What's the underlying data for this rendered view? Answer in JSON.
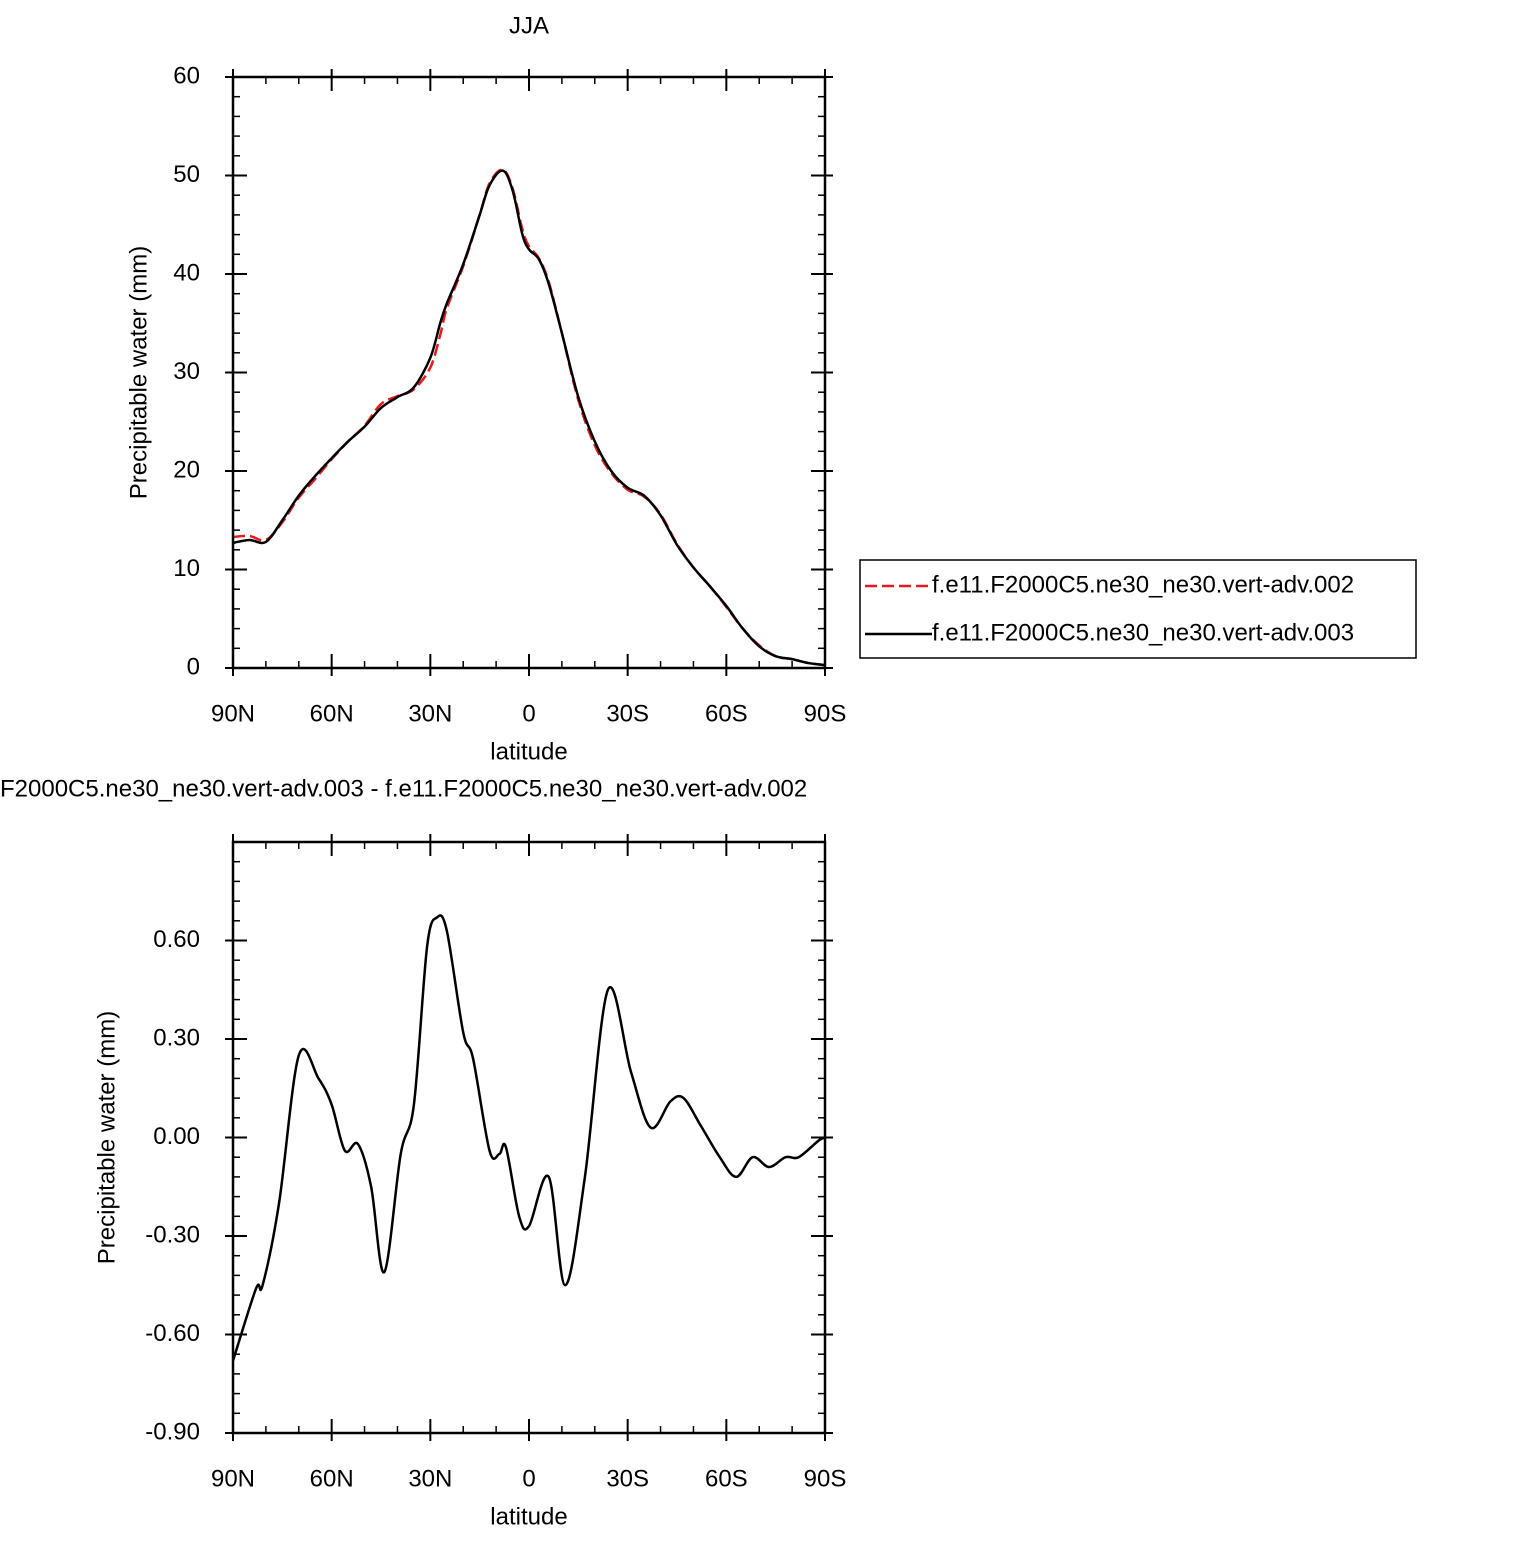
{
  "chart_data": [
    {
      "type": "line",
      "title": "JJA",
      "xlabel": "latitude",
      "ylabel": "Precipitable water (mm)",
      "x": [
        90,
        85,
        80,
        75,
        70,
        65,
        60,
        55,
        50,
        45,
        40,
        35,
        30,
        27,
        25,
        20,
        15,
        12,
        8,
        5,
        2,
        0,
        -3,
        -6,
        -10,
        -15,
        -20,
        -25,
        -30,
        -35,
        -40,
        -45,
        -50,
        -55,
        -60,
        -65,
        -70,
        -75,
        -80,
        -85,
        -90
      ],
      "series": [
        {
          "name": "f.e11.F2000C5.ne30_ne30.vert-adv.002",
          "color": "#e41a1c",
          "dash": "dashed",
          "values": [
            13.3,
            13.4,
            13.0,
            14.8,
            17.3,
            19.2,
            21.2,
            23.0,
            24.6,
            26.8,
            27.6,
            28.3,
            30.5,
            33.8,
            36.5,
            40.8,
            46.0,
            49.2,
            50.6,
            48.7,
            44.5,
            42.8,
            41.6,
            39.2,
            34.0,
            27.2,
            22.6,
            19.8,
            18.1,
            17.4,
            15.6,
            12.6,
            10.2,
            8.3,
            6.2,
            4.0,
            2.3,
            1.2,
            0.9,
            0.5,
            0.3
          ]
        },
        {
          "name": "f.e11.F2000C5.ne30_ne30.vert-adv.003",
          "color": "#000000",
          "dash": "solid",
          "values": [
            12.7,
            13.0,
            12.8,
            15.0,
            17.5,
            19.5,
            21.3,
            23.0,
            24.5,
            26.4,
            27.5,
            28.5,
            31.5,
            35.0,
            37.0,
            41.0,
            46.0,
            49.0,
            50.5,
            48.5,
            44.0,
            42.5,
            41.5,
            39.0,
            34.0,
            27.5,
            23.0,
            20.0,
            18.3,
            17.5,
            15.5,
            12.5,
            10.2,
            8.3,
            6.3,
            4.0,
            2.2,
            1.2,
            0.9,
            0.5,
            0.3
          ]
        }
      ],
      "xlim": [
        90,
        -90
      ],
      "xticks": [
        {
          "value": 90,
          "label": "90N"
        },
        {
          "value": 60,
          "label": "60N"
        },
        {
          "value": 30,
          "label": "30N"
        },
        0,
        {
          "value": -30,
          "label": "30S"
        },
        {
          "value": -60,
          "label": "60S"
        },
        {
          "value": -90,
          "label": "90S"
        }
      ],
      "ylim": [
        0,
        60
      ],
      "yticks": [
        0,
        10,
        20,
        30,
        40,
        50,
        60
      ],
      "legend": "right"
    },
    {
      "type": "line",
      "title": "F2000C5.ne30_ne30.vert-adv.003 - f.e11.F2000C5.ne30_ne30.vert-adv.002",
      "xlabel": "latitude",
      "ylabel": "Precipitable water (mm)",
      "x": [
        90,
        83,
        81,
        76,
        70,
        64,
        60,
        56,
        52,
        48,
        44,
        39,
        35,
        31,
        28,
        25,
        20,
        17,
        12,
        9,
        7,
        3,
        0,
        -6,
        -11,
        -17,
        -24,
        -31,
        -37,
        -43,
        -47,
        -52,
        -58,
        -63,
        -68,
        -73,
        -78,
        -82,
        -88,
        -90
      ],
      "series": [
        {
          "name": null,
          "color": "#000000",
          "dash": "solid",
          "values": [
            -0.68,
            -0.46,
            -0.45,
            -0.2,
            0.25,
            0.18,
            0.1,
            -0.04,
            -0.02,
            -0.15,
            -0.41,
            -0.05,
            0.1,
            0.58,
            0.67,
            0.63,
            0.32,
            0.24,
            -0.04,
            -0.05,
            -0.03,
            -0.24,
            -0.27,
            -0.12,
            -0.45,
            -0.12,
            0.45,
            0.2,
            0.03,
            0.11,
            0.12,
            0.04,
            -0.06,
            -0.12,
            -0.06,
            -0.09,
            -0.06,
            -0.06,
            -0.01,
            0.0
          ]
        }
      ],
      "xlim": [
        90,
        -90
      ],
      "xticks": [
        {
          "value": 90,
          "label": "90N"
        },
        {
          "value": 60,
          "label": "60N"
        },
        {
          "value": 30,
          "label": "30N"
        },
        0,
        {
          "value": -30,
          "label": "30S"
        },
        {
          "value": -60,
          "label": "60S"
        },
        {
          "value": -90,
          "label": "90S"
        }
      ],
      "ylim": [
        -0.9,
        0.9
      ],
      "yticks": [
        {
          "value": -0.9,
          "label": "-0.90"
        },
        {
          "value": -0.6,
          "label": "-0.60"
        },
        {
          "value": -0.3,
          "label": "-0.30"
        },
        {
          "value": 0,
          "label": "0.00"
        },
        {
          "value": 0.3,
          "label": "0.30"
        },
        {
          "value": 0.6,
          "label": "0.60"
        }
      ]
    }
  ]
}
